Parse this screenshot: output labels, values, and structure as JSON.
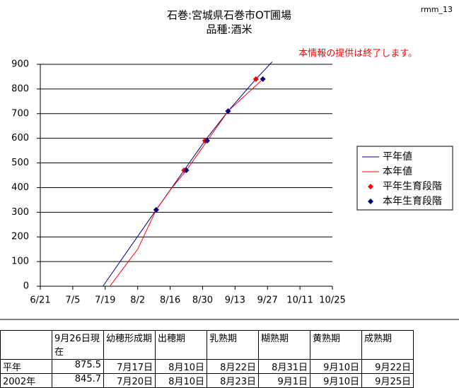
{
  "chart_data": {
    "type": "line",
    "title": "石巻:宮城県石巻市OT圃場",
    "subtitle": "品種:酒米",
    "code": "rmm_13",
    "annotation": "本情報の提供は終了します。",
    "xlim": [
      "06-21",
      "10-25"
    ],
    "xticks": [
      {
        "value": "06-21",
        "label": "6/21"
      },
      {
        "value": "07-05",
        "label": "7/5"
      },
      {
        "value": "07-19",
        "label": "7/19"
      },
      {
        "value": "08-02",
        "label": "8/2"
      },
      {
        "value": "08-16",
        "label": "8/16"
      },
      {
        "value": "08-30",
        "label": "8/30"
      },
      {
        "value": "09-13",
        "label": "9/13"
      },
      {
        "value": "09-27",
        "label": "9/27"
      },
      {
        "value": "10-11",
        "label": "10/11"
      },
      {
        "value": "10-25",
        "label": "10/25"
      }
    ],
    "ylim": [
      0,
      900
    ],
    "yticks": [
      0,
      100,
      200,
      300,
      400,
      500,
      600,
      700,
      800,
      900
    ],
    "grid": true,
    "legend": "right",
    "series": [
      {
        "name": "平年値",
        "color": "#000080",
        "style": "line",
        "x": [
          "07-18",
          "08-10",
          "08-22",
          "08-31",
          "09-10",
          "09-22",
          "09-29"
        ],
        "values": [
          0,
          310,
          470,
          590,
          710,
          840,
          910
        ]
      },
      {
        "name": "本年値",
        "color": "#ff0000",
        "style": "line",
        "x": [
          "07-21",
          "08-02",
          "08-10",
          "08-16",
          "08-23",
          "09-01",
          "09-10",
          "09-25"
        ],
        "values": [
          0,
          150,
          310,
          390,
          470,
          590,
          710,
          840
        ]
      },
      {
        "name": "平年生育段階",
        "color": "#ff0000",
        "style": "marker",
        "x": [
          "08-10",
          "08-22",
          "08-31",
          "09-10",
          "09-22"
        ],
        "values": [
          310,
          470,
          590,
          710,
          840
        ]
      },
      {
        "name": "本年生育段階",
        "color": "#000080",
        "style": "marker",
        "x": [
          "08-10",
          "08-23",
          "09-01",
          "09-10",
          "09-25"
        ],
        "values": [
          310,
          470,
          590,
          710,
          840
        ]
      }
    ]
  },
  "table": {
    "header": [
      "9月26日現在",
      "幼穂形成期",
      "出穂期",
      "乳熟期",
      "糊熟期",
      "黄熟期",
      "成熟期"
    ],
    "rows": [
      [
        "平年",
        "875.5",
        "7月17日",
        "8月10日",
        "8月22日",
        "8月31日",
        "9月10日",
        "9月22日"
      ],
      [
        "2002年",
        "845.7",
        "7月20日",
        "8月10日",
        "8月23日",
        "9月1日",
        "9月10日",
        "9月25日"
      ]
    ]
  }
}
